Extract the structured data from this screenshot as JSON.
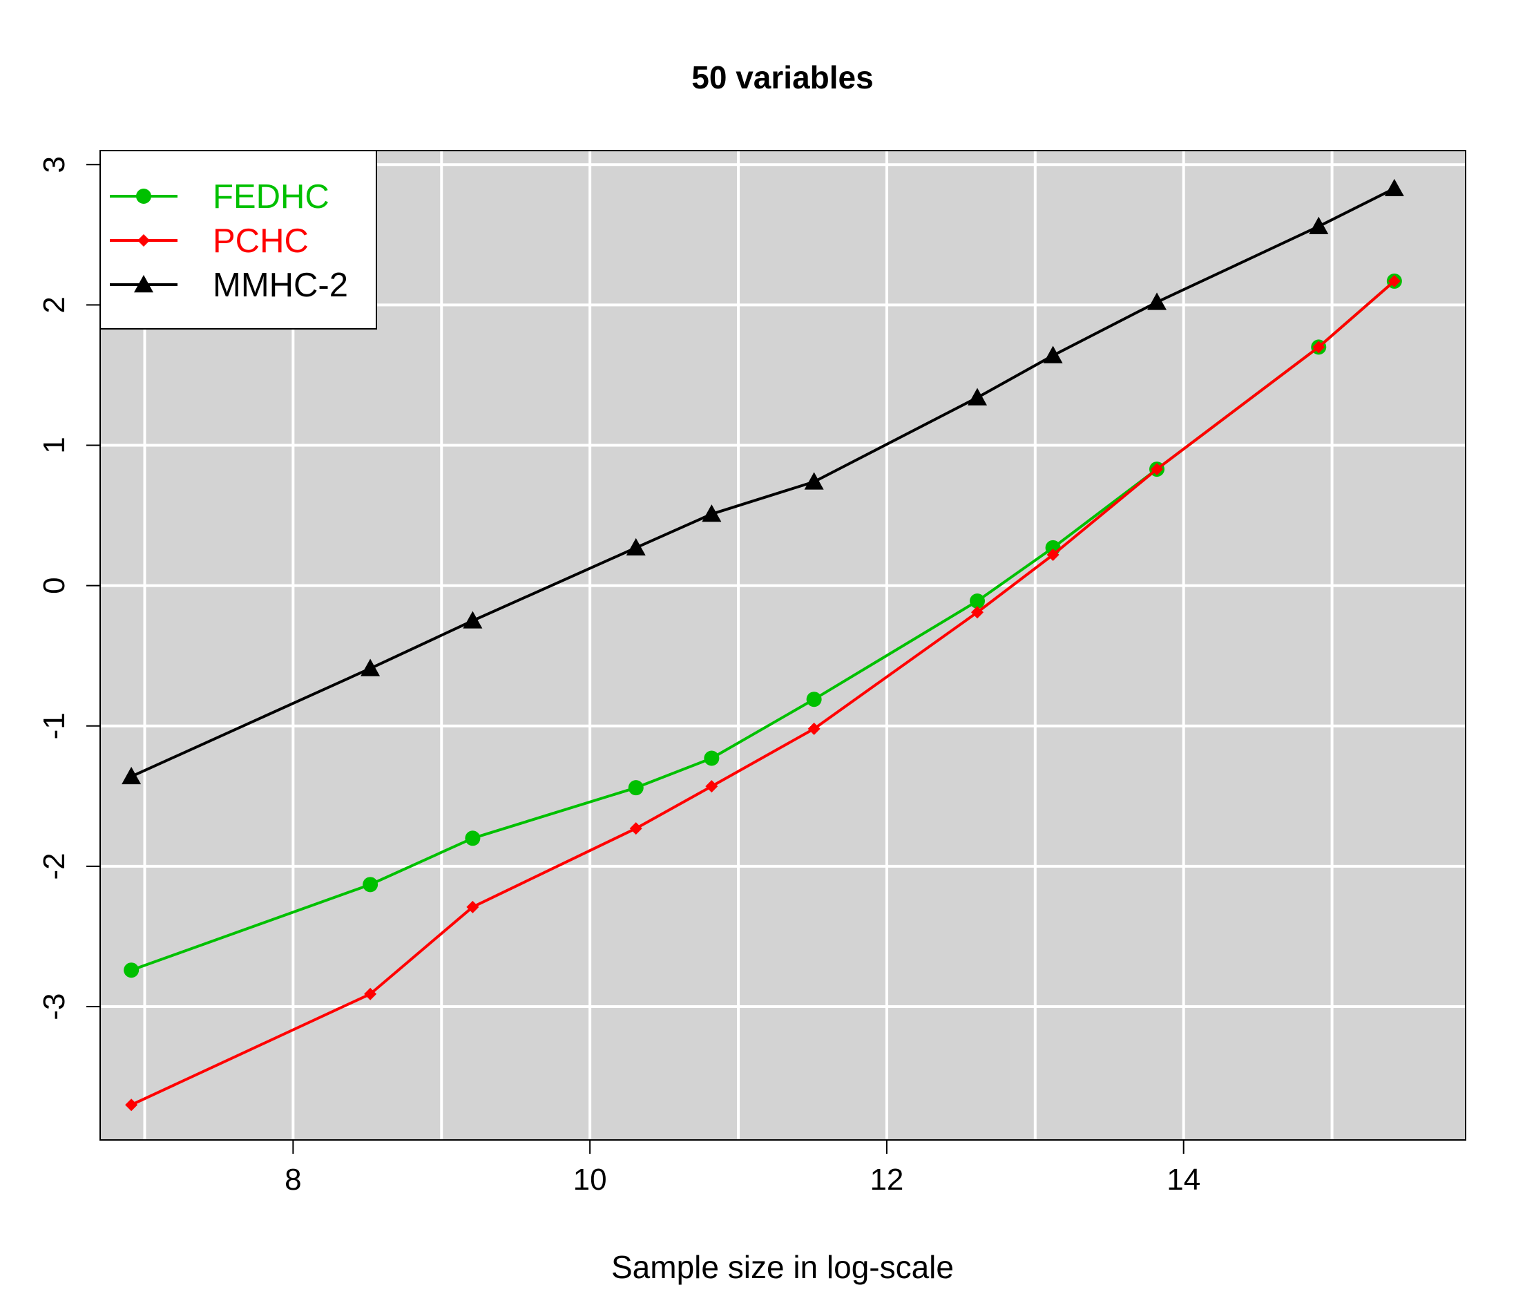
{
  "chart_data": {
    "type": "line",
    "title": "50 variables",
    "xlabel": "Sample size in log-scale",
    "ylabel": "",
    "xlim": [
      6.7,
      15.9
    ],
    "ylim": [
      -3.95,
      3.1
    ],
    "x_ticks": [
      8,
      10,
      12,
      14
    ],
    "y_ticks": [
      -3,
      -2,
      -1,
      0,
      1,
      2,
      3
    ],
    "x_grid": [
      7,
      8,
      9,
      10,
      11,
      12,
      13,
      14,
      15
    ],
    "y_grid": [
      -3,
      -2,
      -1,
      0,
      1,
      2,
      3
    ],
    "background": "#d3d3d3",
    "grid": true,
    "grid_color": "#ffffff",
    "legend_position": "top-left",
    "x": [
      6.91,
      8.52,
      9.21,
      10.31,
      10.82,
      11.51,
      12.61,
      13.12,
      13.82,
      14.91,
      15.42
    ],
    "series": [
      {
        "name": "FEDHC",
        "color": "#00c000",
        "marker": "circle",
        "values": [
          -2.74,
          -2.13,
          -1.8,
          -1.44,
          -1.23,
          -0.81,
          -0.11,
          0.27,
          0.83,
          1.7,
          2.17
        ]
      },
      {
        "name": "PCHC",
        "color": "#ff0000",
        "marker": "diamond",
        "values": [
          -3.7,
          -2.91,
          -2.29,
          -1.73,
          -1.43,
          -1.02,
          -0.19,
          0.22,
          0.83,
          1.7,
          2.17
        ]
      },
      {
        "name": "MMHC-2",
        "color": "#000000",
        "marker": "triangle",
        "values": [
          -1.36,
          -0.59,
          -0.25,
          0.27,
          0.51,
          0.74,
          1.34,
          1.64,
          2.02,
          2.56,
          2.83
        ]
      }
    ]
  }
}
